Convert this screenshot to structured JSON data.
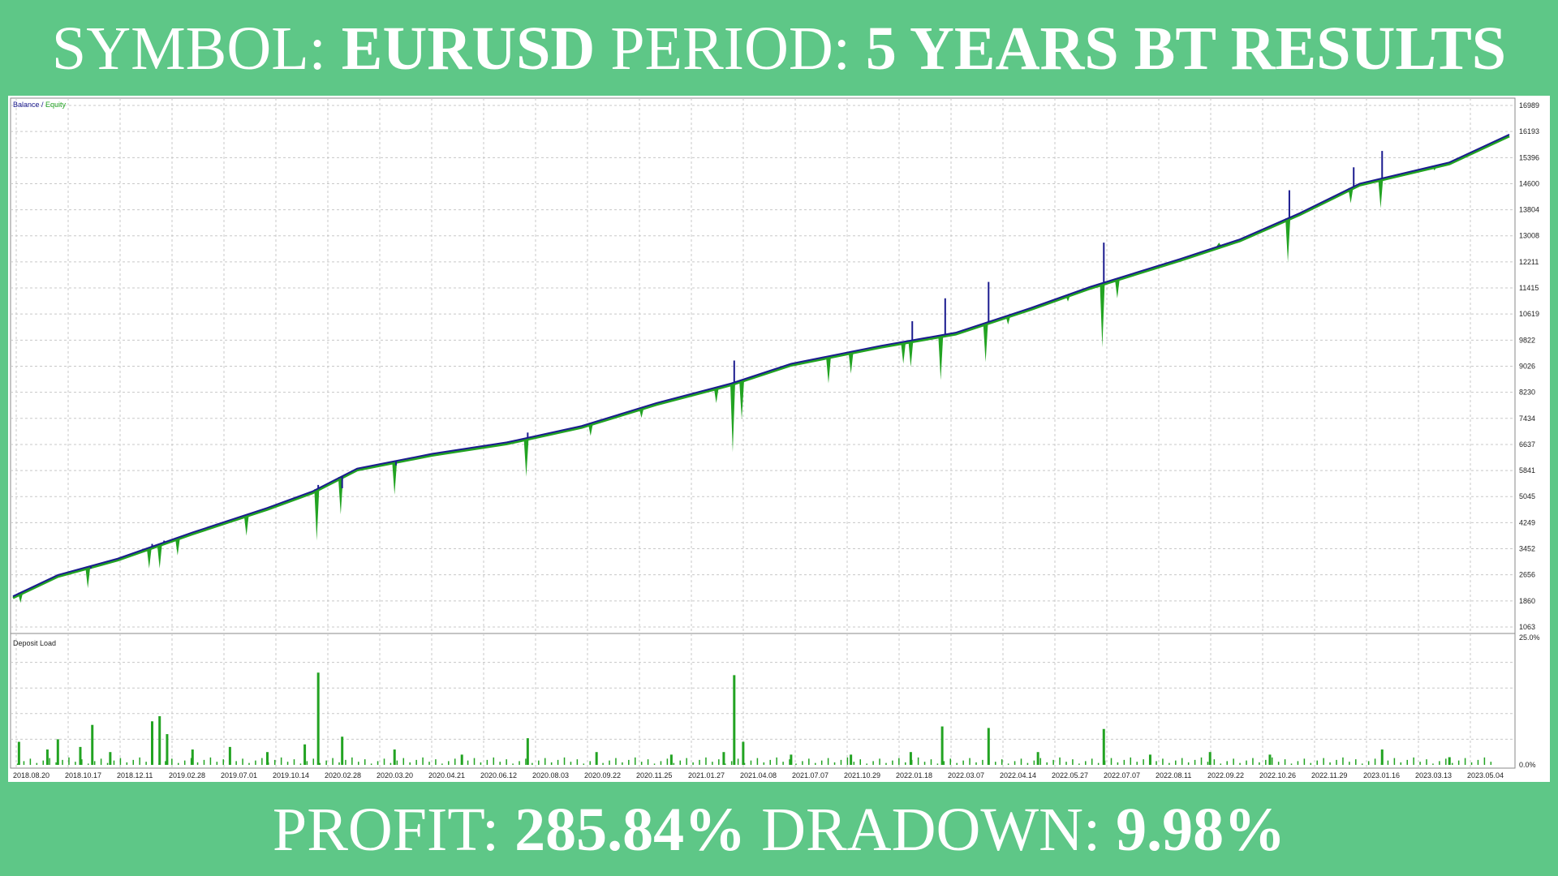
{
  "header": {
    "symbol_label": "SYMBOL:",
    "symbol_value": "EURUSD",
    "period_label": "PERIOD:",
    "period_value": "5 YEARS BT RESULTS"
  },
  "footer": {
    "profit_label": "PROFIT:",
    "profit_value": "285.84%",
    "drawdown_label": "DRADOWN:",
    "drawdown_value": "9.98%"
  },
  "colors": {
    "background": "#5ec787",
    "balance": "#1b1b8f",
    "equity": "#22a322",
    "deposit_load": "#22a322",
    "grid": "#c8c8c8"
  },
  "chart_data": [
    {
      "type": "line",
      "legend": [
        {
          "name": "Balance",
          "color": "#1b1b8f"
        },
        {
          "name": "Equity",
          "color": "#22a322"
        }
      ],
      "legend_separator": " / ",
      "legend_position": "top-left",
      "y_ticks": [
        1063,
        1860,
        2656,
        3452,
        4249,
        5045,
        5841,
        6637,
        7434,
        8230,
        9026,
        9822,
        10619,
        11415,
        12211,
        13008,
        13804,
        14600,
        15396,
        16193,
        16989
      ],
      "ylim": [
        1063,
        16989
      ],
      "grid": true,
      "balance": {
        "x": [
          0,
          3,
          7,
          12,
          17,
          20,
          23,
          28,
          33,
          38,
          43,
          48,
          52,
          58,
          63,
          68,
          72,
          78,
          82,
          86,
          90,
          96,
          100
        ],
        "y": [
          2000,
          2650,
          3150,
          3950,
          4700,
          5200,
          5900,
          6350,
          6700,
          7200,
          7900,
          8500,
          9100,
          9650,
          10050,
          10800,
          11450,
          12300,
          12900,
          13700,
          14600,
          15250,
          16100
        ]
      },
      "balance_spikes": [
        {
          "x": 5.2,
          "y": 2850
        },
        {
          "x": 9.3,
          "y": 3600
        },
        {
          "x": 10.1,
          "y": 3700
        },
        {
          "x": 20.4,
          "y": 5400
        },
        {
          "x": 22.0,
          "y": 5300
        },
        {
          "x": 25.6,
          "y": 6000
        },
        {
          "x": 34.4,
          "y": 7000
        },
        {
          "x": 48.2,
          "y": 9200
        },
        {
          "x": 50.8,
          "y": 8900
        },
        {
          "x": 60.1,
          "y": 10400
        },
        {
          "x": 62.3,
          "y": 11100
        },
        {
          "x": 65.2,
          "y": 11600
        },
        {
          "x": 72.9,
          "y": 12800
        },
        {
          "x": 85.3,
          "y": 14400
        },
        {
          "x": 89.6,
          "y": 15100
        },
        {
          "x": 91.5,
          "y": 15600
        }
      ],
      "equity_dips": [
        {
          "x": 0.5,
          "y": 1800
        },
        {
          "x": 5.0,
          "y": 2250
        },
        {
          "x": 9.1,
          "y": 2850
        },
        {
          "x": 9.8,
          "y": 2850
        },
        {
          "x": 11.0,
          "y": 3250
        },
        {
          "x": 15.6,
          "y": 3850
        },
        {
          "x": 20.3,
          "y": 3700
        },
        {
          "x": 21.9,
          "y": 4500
        },
        {
          "x": 25.5,
          "y": 5100
        },
        {
          "x": 34.3,
          "y": 5650
        },
        {
          "x": 38.6,
          "y": 6900
        },
        {
          "x": 42.0,
          "y": 7450
        },
        {
          "x": 47.0,
          "y": 7900
        },
        {
          "x": 48.1,
          "y": 6400
        },
        {
          "x": 48.7,
          "y": 7400
        },
        {
          "x": 54.5,
          "y": 8500
        },
        {
          "x": 56.0,
          "y": 8800
        },
        {
          "x": 59.5,
          "y": 9100
        },
        {
          "x": 60.0,
          "y": 9000
        },
        {
          "x": 62.0,
          "y": 8600
        },
        {
          "x": 65.0,
          "y": 9150
        },
        {
          "x": 66.5,
          "y": 10300
        },
        {
          "x": 70.5,
          "y": 11000
        },
        {
          "x": 72.8,
          "y": 9600
        },
        {
          "x": 73.8,
          "y": 11100
        },
        {
          "x": 80.0,
          "y": 12600
        },
        {
          "x": 80.6,
          "y": 12800
        },
        {
          "x": 85.2,
          "y": 12200
        },
        {
          "x": 89.4,
          "y": 14000
        },
        {
          "x": 91.4,
          "y": 13850
        },
        {
          "x": 95.0,
          "y": 15000
        }
      ],
      "x_labels": [
        "2018.08.20",
        "2018.10.17",
        "2018.12.11",
        "2019.02.28",
        "2019.07.01",
        "2019.10.14",
        "2020.02.28",
        "2020.03.20",
        "2020.04.21",
        "2020.06.12",
        "2020.08.03",
        "2020.09.22",
        "2020.11.25",
        "2021.01.27",
        "2021.04.08",
        "2021.07.07",
        "2021.10.29",
        "2022.01.18",
        "2022.03.07",
        "2022.04.14",
        "2022.05.27",
        "2022.07.07",
        "2022.08.11",
        "2022.09.22",
        "2022.10.26",
        "2022.11.29",
        "2023.01.16",
        "2023.03.13",
        "2023.05.04"
      ]
    },
    {
      "type": "bar",
      "title": "Deposit Load",
      "y_ticks": [
        "25.0%",
        "0.0%"
      ],
      "ylim": [
        0,
        25
      ],
      "grid": true,
      "spikes": [
        {
          "x": 0.4,
          "y": 4.5
        },
        {
          "x": 2.3,
          "y": 3.0
        },
        {
          "x": 3.0,
          "y": 5.0
        },
        {
          "x": 4.5,
          "y": 3.5
        },
        {
          "x": 5.3,
          "y": 7.8
        },
        {
          "x": 6.5,
          "y": 2.5
        },
        {
          "x": 9.3,
          "y": 8.5
        },
        {
          "x": 9.8,
          "y": 9.5
        },
        {
          "x": 10.3,
          "y": 6.0
        },
        {
          "x": 12.0,
          "y": 3.0
        },
        {
          "x": 14.5,
          "y": 3.5
        },
        {
          "x": 17.0,
          "y": 2.5
        },
        {
          "x": 19.5,
          "y": 4.0
        },
        {
          "x": 20.4,
          "y": 18.0
        },
        {
          "x": 22.0,
          "y": 5.5
        },
        {
          "x": 25.5,
          "y": 3.0
        },
        {
          "x": 30.0,
          "y": 2.0
        },
        {
          "x": 34.4,
          "y": 5.2
        },
        {
          "x": 39.0,
          "y": 2.5
        },
        {
          "x": 44.0,
          "y": 2.0
        },
        {
          "x": 47.5,
          "y": 2.5
        },
        {
          "x": 48.2,
          "y": 17.5
        },
        {
          "x": 48.8,
          "y": 4.5
        },
        {
          "x": 52.0,
          "y": 2.0
        },
        {
          "x": 56.0,
          "y": 2.0
        },
        {
          "x": 60.0,
          "y": 2.5
        },
        {
          "x": 62.1,
          "y": 7.5
        },
        {
          "x": 65.2,
          "y": 7.2
        },
        {
          "x": 68.5,
          "y": 2.5
        },
        {
          "x": 72.9,
          "y": 7.0
        },
        {
          "x": 76.0,
          "y": 2.0
        },
        {
          "x": 80.0,
          "y": 2.5
        },
        {
          "x": 84.0,
          "y": 2.0
        },
        {
          "x": 91.5,
          "y": 3.0
        },
        {
          "x": 96.0,
          "y": 1.5
        }
      ]
    }
  ]
}
